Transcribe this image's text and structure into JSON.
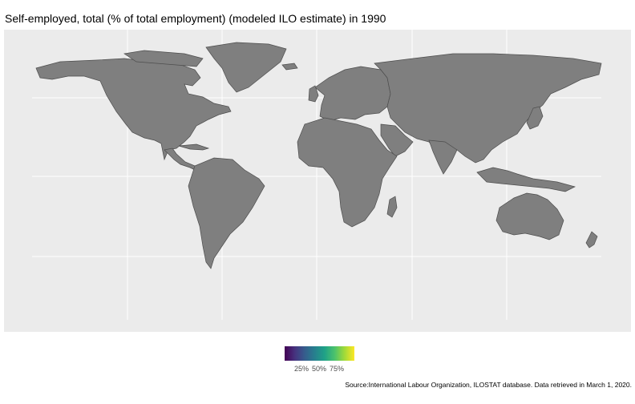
{
  "title": "Self-employed, total (% of total employment) (modeled ILO estimate) in 1990",
  "legend": {
    "colors": [
      "#440154",
      "#46327e",
      "#365c8d",
      "#277f8e",
      "#1fa187",
      "#4ac16d",
      "#a0da39",
      "#fde725"
    ],
    "labels": [
      "25%",
      "50%",
      "75%"
    ]
  },
  "map": {
    "land_color": "#7f7f7f",
    "border_color": "#4d4d4d",
    "panel_color": "#ebebeb",
    "grid_color": "#ffffff"
  },
  "source": "Source:International Labour Organization, ILOSTAT database. Data retrieved in March 1, 2020."
}
